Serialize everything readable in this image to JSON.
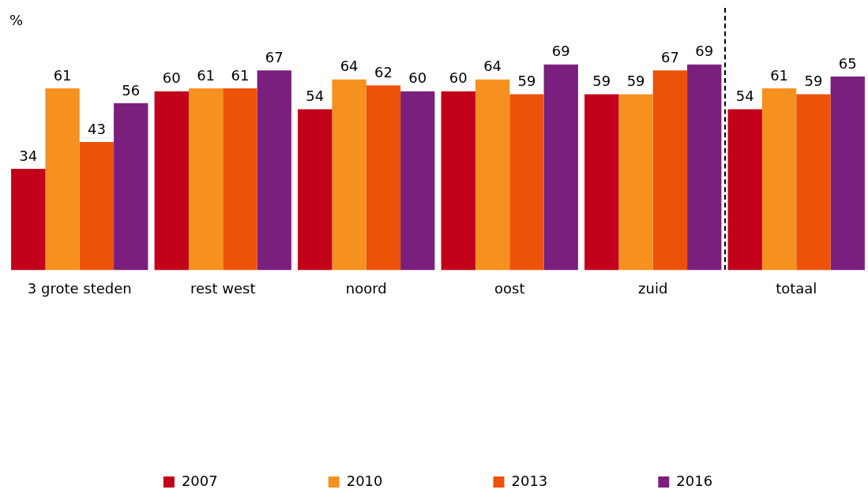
{
  "chart_data": {
    "type": "bar",
    "ylabel": "%",
    "categories": [
      "3 grote steden",
      "rest west",
      "noord",
      "oost",
      "zuid",
      "totaal"
    ],
    "series": [
      {
        "name": "2007",
        "color": "#c3001a",
        "values": [
          34,
          60,
          54,
          60,
          59,
          54
        ]
      },
      {
        "name": "2010",
        "color": "#f6911f",
        "values": [
          61,
          61,
          64,
          64,
          59,
          61
        ]
      },
      {
        "name": "2013",
        "color": "#ee5208",
        "values": [
          43,
          61,
          62,
          59,
          67,
          59
        ]
      },
      {
        "name": "2016",
        "color": "#7a1f7d",
        "values": [
          56,
          67,
          60,
          69,
          69,
          65
        ]
      }
    ],
    "ylim": [
      0,
      88
    ],
    "data_labels": true,
    "grid": false,
    "legend": "bottom"
  }
}
